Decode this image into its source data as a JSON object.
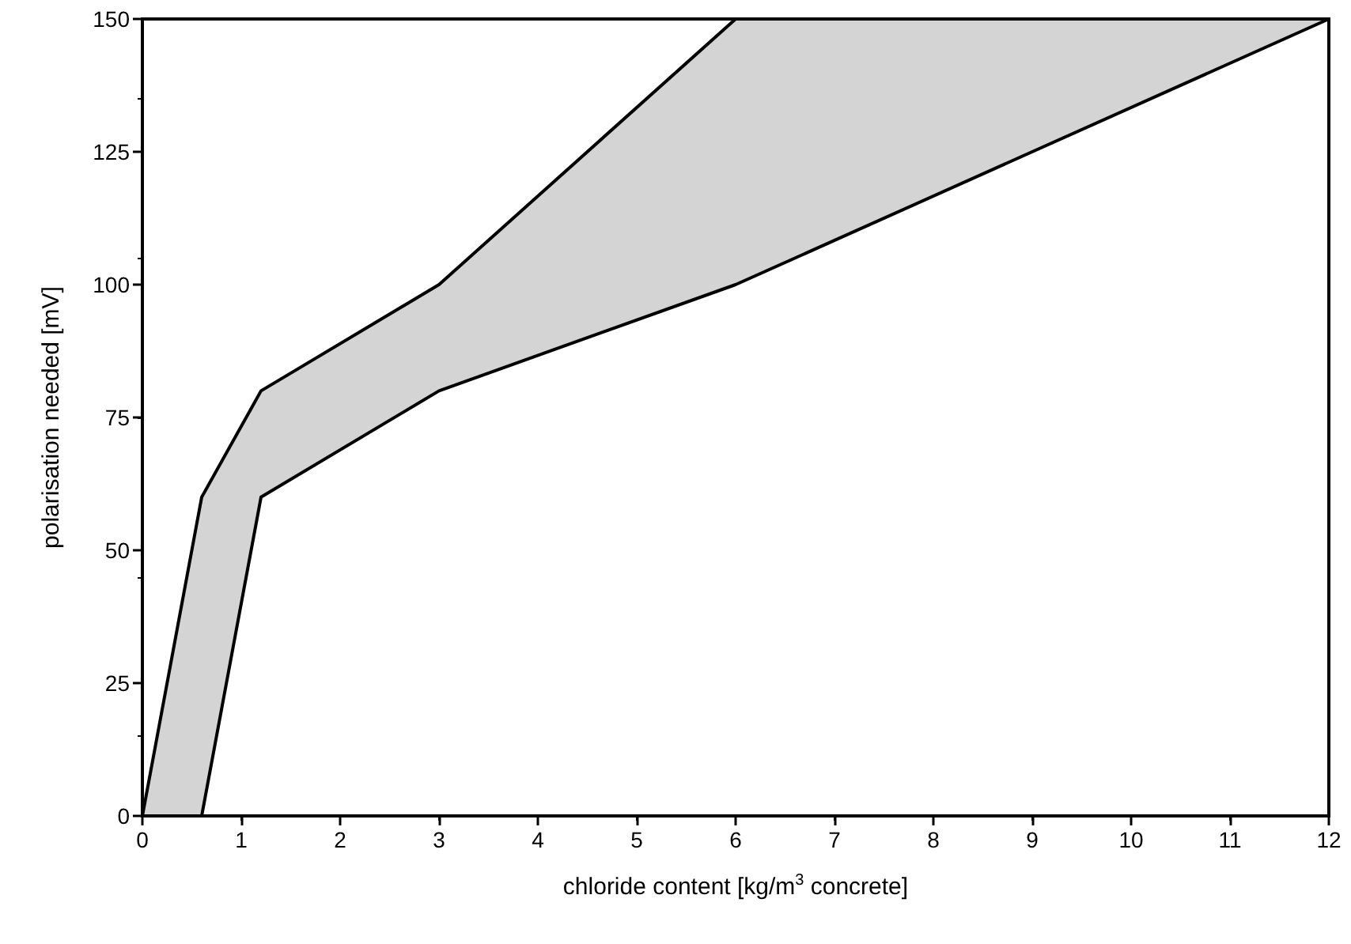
{
  "chart_data": {
    "type": "line",
    "xlabel": "chloride content [kg/m$^{3}$ concrete]",
    "ylabel": "polarisation needed [mV]",
    "x": [
      0,
      0.6,
      1.2,
      3,
      6,
      12
    ],
    "series": [
      {
        "color": "#000000",
        "values": [
          0,
          60,
          80,
          100,
          150,
          150
        ],
        "lower": [
          0,
          0,
          60,
          80,
          100,
          150
        ],
        "upper": [
          0,
          60,
          80,
          100,
          150,
          150
        ]
      },
      {
        "color": "#000000",
        "values": [
          0,
          0,
          60,
          80,
          100,
          150
        ]
      }
    ],
    "xlim": [
      0,
      12
    ],
    "xticks": [
      0,
      1,
      2,
      3,
      4,
      5,
      6,
      7,
      8,
      9,
      10,
      11,
      12
    ],
    "ylim": [
      0,
      150
    ],
    "yticks": [
      0,
      25,
      50,
      75,
      100,
      125,
      150
    ],
    "grid": false,
    "line_style": "solid"
  }
}
